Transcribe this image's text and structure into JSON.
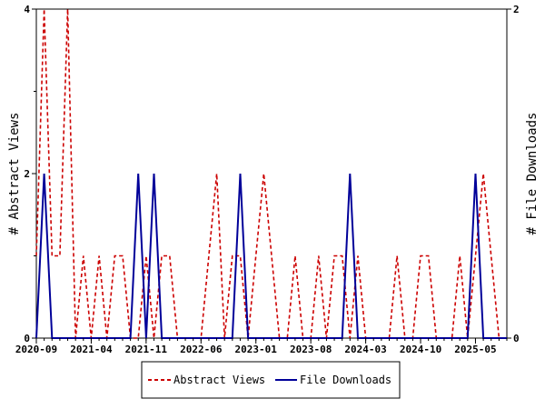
{
  "chart_data": {
    "type": "line",
    "ylabel": "# Abstract Views",
    "y2label": "# File Downloads",
    "ylim": [
      0,
      4
    ],
    "y2lim": [
      0,
      2
    ],
    "yticks": [
      "0",
      "2",
      "4"
    ],
    "y2ticks": [
      "0",
      "2"
    ],
    "xlim": [
      0,
      60
    ],
    "xticks": [
      {
        "pos": 0,
        "label": "2020-09"
      },
      {
        "pos": 7,
        "label": "2021-04"
      },
      {
        "pos": 14,
        "label": "2021-11"
      },
      {
        "pos": 21,
        "label": "2022-06"
      },
      {
        "pos": 28,
        "label": "2023-01"
      },
      {
        "pos": 35,
        "label": "2023-08"
      },
      {
        "pos": 42,
        "label": "2024-03"
      },
      {
        "pos": 49,
        "label": "2024-10"
      },
      {
        "pos": 56,
        "label": "2025-05"
      }
    ],
    "grid": false,
    "legend": "bottom",
    "series": [
      {
        "name": "Abstract Views",
        "axis": "left",
        "color": "#cc0000",
        "style": "dashed",
        "values": [
          1,
          4,
          1,
          1,
          4,
          0,
          1,
          0,
          1,
          0,
          1,
          1,
          0,
          0,
          1,
          0,
          1,
          1,
          0,
          0,
          0,
          0,
          1,
          2,
          0,
          1,
          1,
          0,
          1,
          2,
          1,
          0,
          0,
          1,
          0,
          0,
          1,
          0,
          1,
          1,
          0,
          1,
          0,
          0,
          0,
          0,
          1,
          0,
          0,
          1,
          1,
          0,
          0,
          0,
          1,
          0,
          1,
          2,
          1,
          0,
          0
        ]
      },
      {
        "name": "File Downloads",
        "axis": "right",
        "color": "#000099",
        "style": "solid",
        "values": [
          0,
          1,
          0,
          0,
          0,
          0,
          0,
          0,
          0,
          0,
          0,
          0,
          0,
          1,
          0,
          1,
          0,
          0,
          0,
          0,
          0,
          0,
          0,
          0,
          0,
          0,
          1,
          0,
          0,
          0,
          0,
          0,
          0,
          0,
          0,
          0,
          0,
          0,
          0,
          0,
          1,
          0,
          0,
          0,
          0,
          0,
          0,
          0,
          0,
          0,
          0,
          0,
          0,
          0,
          0,
          0,
          1,
          0,
          0,
          0,
          0
        ]
      }
    ]
  }
}
